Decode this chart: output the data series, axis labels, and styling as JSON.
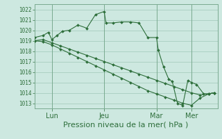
{
  "bg_color": "#cde8e0",
  "grid_color": "#a0c8b8",
  "line_color": "#2d6e3a",
  "marker_color": "#2d6e3a",
  "xlabel": "Pression niveau de la mer( hPa )",
  "xlabel_fontsize": 8,
  "ylim": [
    1012.5,
    1022.5
  ],
  "yticks": [
    1013,
    1014,
    1015,
    1016,
    1017,
    1018,
    1019,
    1020,
    1021,
    1022
  ],
  "ytick_fontsize": 5.5,
  "xtick_labels": [
    "Lun",
    "Jeu",
    "Mar",
    "Mer"
  ],
  "xtick_positions": [
    1,
    4,
    7,
    9
  ],
  "vline_positions": [
    1,
    4,
    7,
    9
  ],
  "xlim": [
    0,
    10.5
  ],
  "series": [
    {
      "x": [
        0.0,
        0.5,
        0.8,
        1.0,
        1.3,
        1.6,
        2.0,
        2.5,
        3.0,
        3.5,
        4.0,
        4.1,
        4.5,
        5.0,
        5.5,
        6.0,
        6.5,
        7.0,
        7.1,
        7.4,
        7.7,
        7.9,
        8.2,
        8.5,
        8.8,
        9.0,
        9.3,
        9.7,
        10.0,
        10.3
      ],
      "y": [
        1019.3,
        1019.5,
        1019.8,
        1019.1,
        1019.5,
        1019.9,
        1020.0,
        1020.5,
        1020.2,
        1021.5,
        1021.8,
        1020.7,
        1020.7,
        1020.8,
        1020.8,
        1020.7,
        1019.3,
        1019.3,
        1018.1,
        1016.5,
        1015.3,
        1015.1,
        1013.0,
        1012.8,
        1015.2,
        1015.0,
        1014.8,
        1013.9,
        1013.9,
        1014.0
      ]
    },
    {
      "x": [
        0.0,
        0.5,
        1.0,
        1.5,
        2.0,
        2.5,
        3.0,
        3.5,
        4.0,
        4.5,
        5.0,
        5.5,
        6.0,
        6.5,
        7.0,
        7.5,
        8.0,
        8.5,
        9.0,
        9.5,
        10.0,
        10.3
      ],
      "y": [
        1019.0,
        1019.1,
        1018.8,
        1018.5,
        1018.2,
        1017.9,
        1017.6,
        1017.3,
        1017.0,
        1016.7,
        1016.4,
        1016.1,
        1015.8,
        1015.5,
        1015.2,
        1014.9,
        1014.6,
        1014.3,
        1014.0,
        1013.8,
        1013.9,
        1014.0
      ]
    },
    {
      "x": [
        0.0,
        0.5,
        1.0,
        1.5,
        2.0,
        2.5,
        3.0,
        3.5,
        4.0,
        4.5,
        5.0,
        5.5,
        6.0,
        6.5,
        7.0,
        7.5,
        8.0,
        8.5,
        9.0,
        9.5,
        10.0,
        10.3
      ],
      "y": [
        1019.0,
        1018.9,
        1018.6,
        1018.2,
        1017.8,
        1017.4,
        1017.0,
        1016.6,
        1016.2,
        1015.8,
        1015.4,
        1015.0,
        1014.6,
        1014.2,
        1013.9,
        1013.6,
        1013.3,
        1013.0,
        1012.8,
        1013.5,
        1013.9,
        1014.0
      ]
    }
  ]
}
